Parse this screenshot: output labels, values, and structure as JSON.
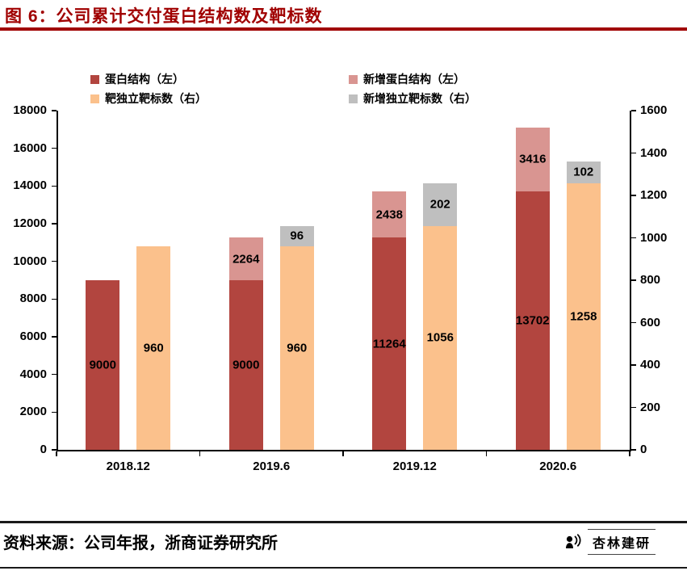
{
  "header": {
    "title": "图 6：公司累计交付蛋白结构数及靶标数"
  },
  "theme": {
    "title_color": "#A00000",
    "axis_color": "#000000"
  },
  "chart_data": {
    "type": "bar",
    "title": "公司累计交付蛋白结构数及靶标数",
    "categories": [
      "2018.12",
      "2019.6",
      "2019.12",
      "2020.6"
    ],
    "series": [
      {
        "name": "蛋白结构（左）",
        "axis": "left",
        "color": "#B2453F",
        "values": [
          9000,
          9000,
          11264,
          13702
        ]
      },
      {
        "name": "新增蛋白结构（左）",
        "axis": "left",
        "color": "#D99591",
        "values": [
          0,
          2264,
          2438,
          3416
        ]
      },
      {
        "name": "靶独立靶标数（右）",
        "axis": "right",
        "color": "#FBC18C",
        "values": [
          960,
          960,
          1056,
          1258
        ]
      },
      {
        "name": "新增独立靶标数（右）",
        "axis": "right",
        "color": "#BFBFBF",
        "values": [
          0,
          96,
          202,
          102
        ]
      }
    ],
    "left_axis": {
      "min": 0,
      "max": 18000,
      "step": 2000,
      "ticks": [
        0,
        2000,
        4000,
        6000,
        8000,
        10000,
        12000,
        14000,
        16000,
        18000
      ]
    },
    "right_axis": {
      "min": 0,
      "max": 1600,
      "step": 200,
      "ticks": [
        0,
        200,
        400,
        600,
        800,
        1000,
        1200,
        1400,
        1600
      ]
    },
    "legend_position": "top",
    "grid": false,
    "data_labels": true
  },
  "footer": {
    "source": "资料来源：公司年报，浙商证券研究所",
    "logo_text": "杏林建研"
  }
}
